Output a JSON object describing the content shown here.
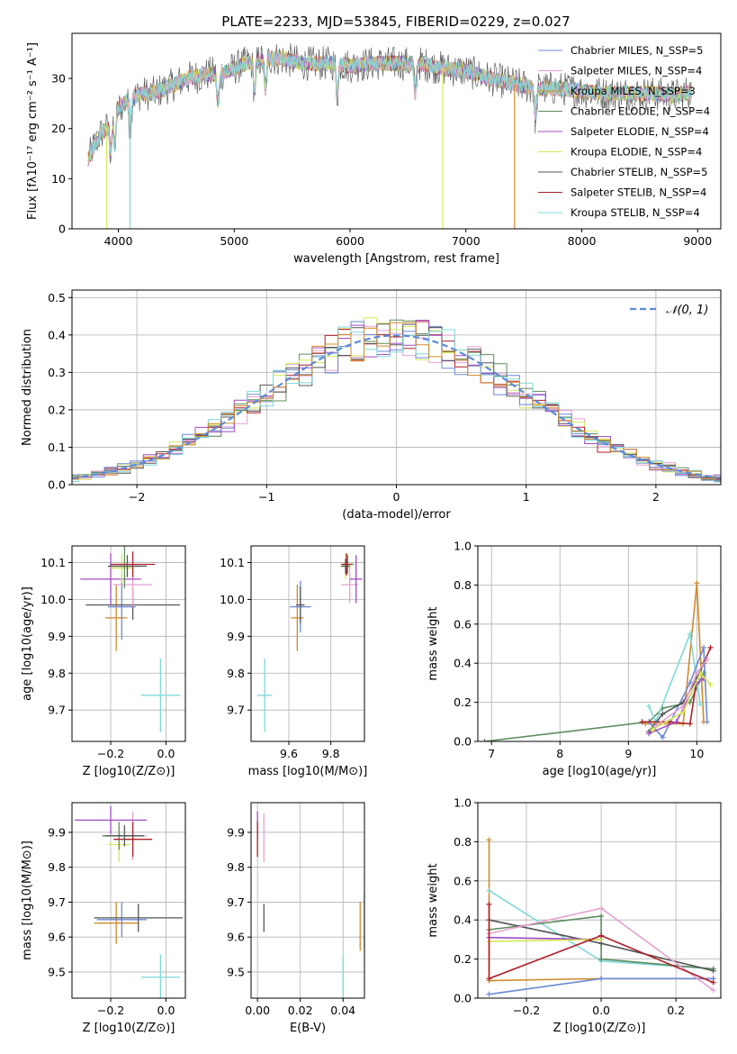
{
  "title": "PLATE=2233, MJD=53845, FIBERID=0229, z=0.027",
  "colors": {
    "chabrier_miles": "#6a89d6",
    "salpeter_miles": "#e8a0d0",
    "kroupa_miles": "#d08a2a",
    "chabrier_elodie": "#5f8c5f",
    "salpeter_elodie": "#a04bc4",
    "kroupa_elodie": "#d6e85a",
    "chabrier_stelib": "#555555",
    "salpeter_stelib": "#b0202a",
    "kroupa_stelib": "#7fd8d8",
    "normal": "#5b8bd9"
  },
  "chart_data": [
    {
      "id": "spectrum",
      "type": "line",
      "title": "PLATE=2233, MJD=53845, FIBERID=0229, z=0.027",
      "xlabel": "wavelength [Angstrom, rest frame]",
      "ylabel": "Flux [fλ10⁻¹⁷ erg cm⁻² s⁻¹ A⁻¹]",
      "xlim": [
        3600,
        9200
      ],
      "ylim": [
        0,
        39
      ],
      "xticks": [
        4000,
        5000,
        6000,
        7000,
        8000,
        9000
      ],
      "yticks": [
        0,
        10,
        20,
        30
      ],
      "grid": false,
      "legend_position": "top-right",
      "legend": [
        {
          "label": "Chabrier MILES, N_SSP=5",
          "color": "#6a89d6"
        },
        {
          "label": "Salpeter MILES, N_SSP=4",
          "color": "#e8a0d0"
        },
        {
          "label": "Kroupa MILES, N_SSP=3",
          "color": "#d08a2a"
        },
        {
          "label": "Chabrier ELODIE, N_SSP=4",
          "color": "#5f8c5f"
        },
        {
          "label": "Salpeter ELODIE, N_SSP=4",
          "color": "#a04bc4"
        },
        {
          "label": "Kroupa ELODIE, N_SSP=4",
          "color": "#d6e85a"
        },
        {
          "label": "Chabrier STELIB, N_SSP=5",
          "color": "#555555"
        },
        {
          "label": "Salpeter STELIB, N_SSP=4",
          "color": "#b0202a"
        },
        {
          "label": "Kroupa STELIB, N_SSP=4",
          "color": "#7fd8d8"
        }
      ],
      "continuum": [
        [
          3740,
          14
        ],
        [
          3800,
          17
        ],
        [
          3850,
          19
        ],
        [
          3900,
          20
        ],
        [
          3950,
          22
        ],
        [
          4000,
          24
        ],
        [
          4100,
          26
        ],
        [
          4200,
          27
        ],
        [
          4300,
          27
        ],
        [
          4400,
          28
        ],
        [
          4500,
          29
        ],
        [
          4600,
          30
        ],
        [
          4700,
          30.5
        ],
        [
          4800,
          31
        ],
        [
          4900,
          31
        ],
        [
          5000,
          32
        ],
        [
          5100,
          33
        ],
        [
          5200,
          33.5
        ],
        [
          5300,
          34
        ],
        [
          5400,
          34
        ],
        [
          5500,
          33.5
        ],
        [
          5600,
          33
        ],
        [
          5700,
          33
        ],
        [
          5800,
          33
        ],
        [
          5900,
          33
        ],
        [
          6000,
          32.5
        ],
        [
          6200,
          33
        ],
        [
          6400,
          33
        ],
        [
          6600,
          33
        ],
        [
          6800,
          32
        ],
        [
          7000,
          31.5
        ],
        [
          7200,
          30
        ],
        [
          7400,
          29
        ],
        [
          7600,
          28
        ],
        [
          7800,
          28
        ],
        [
          8000,
          27.5
        ],
        [
          8200,
          27
        ],
        [
          8400,
          27
        ],
        [
          8600,
          27
        ],
        [
          8800,
          26.5
        ],
        [
          8950,
          27.5
        ]
      ],
      "dropouts": [
        {
          "x": 3900,
          "color": "#d6e85a"
        },
        {
          "x": 4100,
          "color": "#7fd8d8"
        },
        {
          "x": 6800,
          "color": "#d6e85a"
        },
        {
          "x": 7420,
          "color": "#d08a2a"
        }
      ]
    },
    {
      "id": "residuals",
      "type": "histogram",
      "xlabel": "(data-model)/error",
      "ylabel": "Normed distribution",
      "xlim": [
        -2.5,
        2.5
      ],
      "ylim": [
        0,
        0.52
      ],
      "xticks": [
        -2,
        -1,
        0,
        1,
        2
      ],
      "yticks": [
        0.0,
        0.1,
        0.2,
        0.3,
        0.4,
        0.5
      ],
      "grid": true,
      "legend_position": "top-right",
      "reference_curve": {
        "label": "𝒩(0, 1)",
        "mu": 0,
        "sigma": 1
      }
    },
    {
      "id": "age_vs_Z",
      "type": "errorbar",
      "xlabel": "Z [log10(Z/Z⊙)]",
      "ylabel": "age  [log10(age/yr)]",
      "xlim": [
        -0.34,
        0.07
      ],
      "ylim": [
        9.615,
        10.145
      ],
      "xticks": [
        -0.2,
        0.0
      ],
      "yticks": [
        9.7,
        9.8,
        9.9,
        10.0,
        10.1
      ],
      "grid": true,
      "points": [
        {
          "x": -0.02,
          "y": 9.74,
          "xerr": 0.07,
          "yerr": 0.1,
          "color": "#7fd8d8"
        },
        {
          "x": -0.18,
          "y": 9.95,
          "xerr": 0.04,
          "yerr": 0.09,
          "color": "#d08a2a"
        },
        {
          "x": -0.16,
          "y": 9.98,
          "xerr": 0.05,
          "yerr": 0.09,
          "color": "#6a89d6"
        },
        {
          "x": -0.12,
          "y": 9.985,
          "xerr": 0.17,
          "yerr": 0.04,
          "color": "#555555"
        },
        {
          "x": -0.12,
          "y": 10.04,
          "xerr": 0.07,
          "yerr": 0.06,
          "color": "#e8a0d0"
        },
        {
          "x": -0.2,
          "y": 10.055,
          "xerr": 0.11,
          "yerr": 0.07,
          "color": "#a04bc4"
        },
        {
          "x": -0.16,
          "y": 10.085,
          "xerr": 0.04,
          "yerr": 0.04,
          "color": "#d6e85a"
        },
        {
          "x": -0.15,
          "y": 10.09,
          "xerr": 0.06,
          "yerr": 0.06,
          "color": "#5f8c5f"
        },
        {
          "x": -0.12,
          "y": 10.095,
          "xerr": 0.08,
          "yerr": 0.035,
          "color": "#b0202a"
        },
        {
          "x": -0.14,
          "y": 10.09,
          "xerr": 0.07,
          "yerr": 0.03,
          "color": "#555555"
        }
      ]
    },
    {
      "id": "age_vs_mass",
      "type": "errorbar",
      "xlabel": "mass [log10(M/M⊙)]",
      "ylabel": "",
      "xlim": [
        9.42,
        9.96
      ],
      "ylim": [
        9.615,
        10.145
      ],
      "xticks": [
        9.6,
        9.8
      ],
      "yticks": [
        9.7,
        9.8,
        9.9,
        10.0,
        10.1
      ],
      "grid": true,
      "points": [
        {
          "x": 9.485,
          "y": 9.74,
          "xerr": 0.035,
          "yerr": 0.1,
          "color": "#7fd8d8"
        },
        {
          "x": 9.64,
          "y": 9.95,
          "xerr": 0.03,
          "yerr": 0.09,
          "color": "#d08a2a"
        },
        {
          "x": 9.655,
          "y": 9.98,
          "xerr": 0.05,
          "yerr": 0.07,
          "color": "#6a89d6"
        },
        {
          "x": 9.655,
          "y": 9.985,
          "xerr": 0.02,
          "yerr": 0.05,
          "color": "#555555"
        },
        {
          "x": 9.89,
          "y": 10.04,
          "xerr": 0.04,
          "yerr": 0.05,
          "color": "#e8a0d0"
        },
        {
          "x": 9.92,
          "y": 10.055,
          "xerr": 0.03,
          "yerr": 0.065,
          "color": "#a04bc4"
        },
        {
          "x": 9.87,
          "y": 10.09,
          "xerr": 0.025,
          "yerr": 0.035,
          "color": "#d6e85a"
        },
        {
          "x": 9.88,
          "y": 10.095,
          "xerr": 0.03,
          "yerr": 0.025,
          "color": "#5f8c5f"
        },
        {
          "x": 9.875,
          "y": 10.095,
          "xerr": 0.025,
          "yerr": 0.03,
          "color": "#b0202a"
        },
        {
          "x": 9.87,
          "y": 10.09,
          "xerr": 0.02,
          "yerr": 0.02,
          "color": "#555555"
        }
      ]
    },
    {
      "id": "weight_vs_age",
      "type": "line",
      "xlabel": "age  [log10(age/yr)]",
      "ylabel": "mass weight",
      "xlim": [
        6.8,
        10.35
      ],
      "ylim": [
        0,
        1.0
      ],
      "xticks": [
        7,
        8,
        9,
        10
      ],
      "yticks": [
        0.0,
        0.2,
        0.4,
        0.6,
        0.8,
        1.0
      ],
      "grid": true,
      "series": [
        {
          "color": "#5f8c5f",
          "points": [
            [
              6.9,
              0.0
            ],
            [
              9.3,
              0.1
            ],
            [
              9.5,
              0.17
            ],
            [
              9.9,
              0.2
            ],
            [
              10.1,
              0.35
            ]
          ]
        },
        {
          "color": "#d08a2a",
          "points": [
            [
              9.25,
              0.09
            ],
            [
              9.8,
              0.09
            ],
            [
              10.0,
              0.81
            ],
            [
              10.1,
              0.1
            ]
          ]
        },
        {
          "color": "#7fd8d8",
          "points": [
            [
              9.3,
              0.18
            ],
            [
              9.4,
              0.1
            ],
            [
              9.9,
              0.55
            ],
            [
              10.05,
              0.19
            ]
          ]
        },
        {
          "color": "#6a89d6",
          "points": [
            [
              9.3,
              0.1
            ],
            [
              9.5,
              0.02
            ],
            [
              9.9,
              0.3
            ],
            [
              10.1,
              0.48
            ],
            [
              10.15,
              0.1
            ]
          ]
        },
        {
          "color": "#b0202a",
          "points": [
            [
              9.2,
              0.1
            ],
            [
              9.6,
              0.1
            ],
            [
              9.9,
              0.09
            ],
            [
              10.0,
              0.32
            ],
            [
              10.2,
              0.48
            ]
          ]
        },
        {
          "color": "#555555",
          "points": [
            [
              9.3,
              0.05
            ],
            [
              9.5,
              0.14
            ],
            [
              9.8,
              0.2
            ],
            [
              10.0,
              0.32
            ],
            [
              10.1,
              0.4
            ]
          ]
        },
        {
          "color": "#a04bc4",
          "points": [
            [
              9.3,
              0.04
            ],
            [
              9.7,
              0.1
            ],
            [
              10.0,
              0.3
            ],
            [
              10.1,
              0.32
            ]
          ]
        },
        {
          "color": "#d6e85a",
          "points": [
            [
              9.35,
              0.06
            ],
            [
              9.8,
              0.15
            ],
            [
              10.05,
              0.35
            ],
            [
              10.2,
              0.29
            ]
          ]
        },
        {
          "color": "#e8a0d0",
          "points": [
            [
              9.4,
              0.08
            ],
            [
              9.8,
              0.18
            ],
            [
              10.0,
              0.35
            ],
            [
              10.15,
              0.42
            ]
          ]
        }
      ]
    },
    {
      "id": "mass_vs_Z",
      "type": "errorbar",
      "xlabel": "Z [log10(Z/Z⊙)]",
      "ylabel": "mass [log10(M/M⊙)]",
      "xlim": [
        -0.34,
        0.07
      ],
      "ylim": [
        9.425,
        9.985
      ],
      "xticks": [
        -0.2,
        0.0
      ],
      "yticks": [
        9.5,
        9.6,
        9.7,
        9.8,
        9.9
      ],
      "grid": true,
      "points": [
        {
          "x": -0.02,
          "y": 9.485,
          "xerr": 0.07,
          "yerr": 0.065,
          "color": "#7fd8d8"
        },
        {
          "x": -0.18,
          "y": 9.64,
          "xerr": 0.08,
          "yerr": 0.06,
          "color": "#d08a2a"
        },
        {
          "x": -0.16,
          "y": 9.65,
          "xerr": 0.09,
          "yerr": 0.05,
          "color": "#6a89d6"
        },
        {
          "x": -0.1,
          "y": 9.655,
          "xerr": 0.16,
          "yerr": 0.04,
          "color": "#555555"
        },
        {
          "x": -0.12,
          "y": 9.89,
          "xerr": 0.05,
          "yerr": 0.07,
          "color": "#e8a0d0"
        },
        {
          "x": -0.2,
          "y": 9.935,
          "xerr": 0.13,
          "yerr": 0.04,
          "color": "#a04bc4"
        },
        {
          "x": -0.17,
          "y": 9.865,
          "xerr": 0.04,
          "yerr": 0.05,
          "color": "#d6e85a"
        },
        {
          "x": -0.17,
          "y": 9.89,
          "xerr": 0.06,
          "yerr": 0.04,
          "color": "#5f8c5f"
        },
        {
          "x": -0.12,
          "y": 9.88,
          "xerr": 0.07,
          "yerr": 0.05,
          "color": "#b0202a"
        },
        {
          "x": -0.15,
          "y": 9.89,
          "xerr": 0.07,
          "yerr": 0.03,
          "color": "#555555"
        }
      ]
    },
    {
      "id": "mass_vs_ebv",
      "type": "errorbar",
      "xlabel": "E(B-V)",
      "ylabel": "",
      "xlim": [
        -0.003,
        0.05
      ],
      "ylim": [
        9.425,
        9.985
      ],
      "xticks": [
        0.0,
        0.02,
        0.04
      ],
      "yticks": [
        9.5,
        9.6,
        9.7,
        9.8,
        9.9
      ],
      "grid": true,
      "points": [
        {
          "x": 0.04,
          "y": 9.485,
          "xerr": 0,
          "yerr": 0.065,
          "color": "#7fd8d8"
        },
        {
          "x": 0.048,
          "y": 9.63,
          "xerr": 0,
          "yerr": 0.07,
          "color": "#d08a2a"
        },
        {
          "x": 0.05,
          "y": 9.645,
          "xerr": 0,
          "yerr": 0.08,
          "color": "#6a89d6"
        },
        {
          "x": 0.003,
          "y": 9.655,
          "xerr": 0,
          "yerr": 0.04,
          "color": "#555555"
        },
        {
          "x": 0.003,
          "y": 9.885,
          "xerr": 0,
          "yerr": 0.07,
          "color": "#e8a0d0"
        },
        {
          "x": 0.0,
          "y": 9.92,
          "xerr": 0,
          "yerr": 0.04,
          "color": "#a04bc4"
        },
        {
          "x": 0.0,
          "y": 9.88,
          "xerr": 0,
          "yerr": 0.05,
          "color": "#b0202a"
        }
      ]
    },
    {
      "id": "weight_vs_Z",
      "type": "line",
      "xlabel": "Z [log10(Z/Z⊙)]",
      "ylabel": "mass weight",
      "xlim": [
        -0.33,
        0.32
      ],
      "ylim": [
        0,
        1.0
      ],
      "xticks": [
        -0.2,
        0.0,
        0.2
      ],
      "yticks": [
        0.0,
        0.2,
        0.4,
        0.6,
        0.8,
        1.0
      ],
      "grid": true,
      "series": [
        {
          "color": "#d08a2a",
          "points": [
            [
              -0.3,
              0.81
            ],
            [
              -0.3,
              0.09
            ],
            [
              0.0,
              0.1
            ],
            [
              0.3,
              0.1
            ]
          ]
        },
        {
          "color": "#6a89d6",
          "points": [
            [
              -0.3,
              0.02
            ],
            [
              0.0,
              0.1
            ],
            [
              0.3,
              0.1
            ]
          ]
        },
        {
          "color": "#7fd8d8",
          "points": [
            [
              -0.3,
              0.55
            ],
            [
              0.0,
              0.19
            ],
            [
              0.3,
              0.15
            ]
          ]
        },
        {
          "color": "#5f8c5f",
          "points": [
            [
              -0.3,
              0.35
            ],
            [
              0.0,
              0.42
            ],
            [
              0.0,
              0.2
            ],
            [
              0.3,
              0.15
            ]
          ]
        },
        {
          "color": "#555555",
          "points": [
            [
              -0.3,
              0.4
            ],
            [
              0.0,
              0.28
            ],
            [
              0.3,
              0.14
            ]
          ]
        },
        {
          "color": "#e8a0d0",
          "points": [
            [
              -0.3,
              0.33
            ],
            [
              0.0,
              0.46
            ],
            [
              0.3,
              0.04
            ]
          ]
        },
        {
          "color": "#a04bc4",
          "points": [
            [
              -0.3,
              0.31
            ],
            [
              0.0,
              0.3
            ]
          ]
        },
        {
          "color": "#d6e85a",
          "points": [
            [
              -0.3,
              0.29
            ],
            [
              0.0,
              0.3
            ]
          ]
        },
        {
          "color": "#b0202a",
          "points": [
            [
              -0.3,
              0.48
            ],
            [
              -0.3,
              0.1
            ],
            [
              0.0,
              0.32
            ],
            [
              0.3,
              0.08
            ]
          ]
        }
      ]
    }
  ]
}
